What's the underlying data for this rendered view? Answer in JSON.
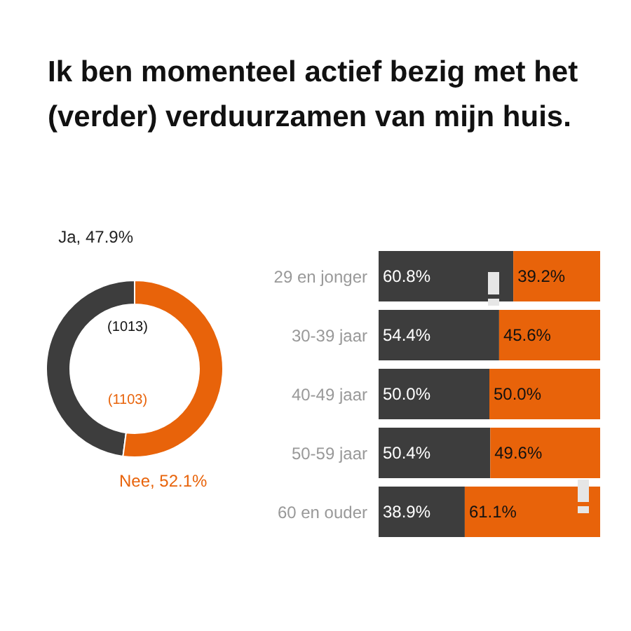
{
  "chart_data": [
    {
      "type": "donut",
      "title": "Ik ben momenteel actief bezig met het (verder) verduurzamen van mijn huis.",
      "categories": [
        "Ja, 47.9%",
        "Nee, 52.1%"
      ],
      "values": [
        47.9,
        52.1
      ],
      "colors": [
        "#3d3d3d",
        "#e8630a"
      ],
      "annotations": [
        "(1013)",
        "(1103)"
      ]
    },
    {
      "type": "bar",
      "orientation": "horizontal",
      "stacked": true,
      "categories": [
        "29 en jonger",
        "30-39 jaar",
        "40-49 jaar",
        "50-59 jaar",
        "60 en ouder"
      ],
      "xlim": [
        0,
        100
      ],
      "tick_labels": "y",
      "data_labels": true,
      "series": [
        {
          "color": "#3d3d3d",
          "values": [
            60.8,
            54.4,
            50.0,
            50.4,
            38.9
          ],
          "value_labels": [
            "60.8%",
            "54.4%",
            "50.0%",
            "50.4%",
            "38.9%"
          ]
        },
        {
          "color": "#e8630a",
          "values": [
            39.2,
            45.6,
            50.0,
            49.6,
            61.1
          ],
          "value_labels": [
            "39.2%",
            "45.6%",
            "50.0%",
            "49.6%",
            "61.1%"
          ]
        }
      ]
    }
  ]
}
